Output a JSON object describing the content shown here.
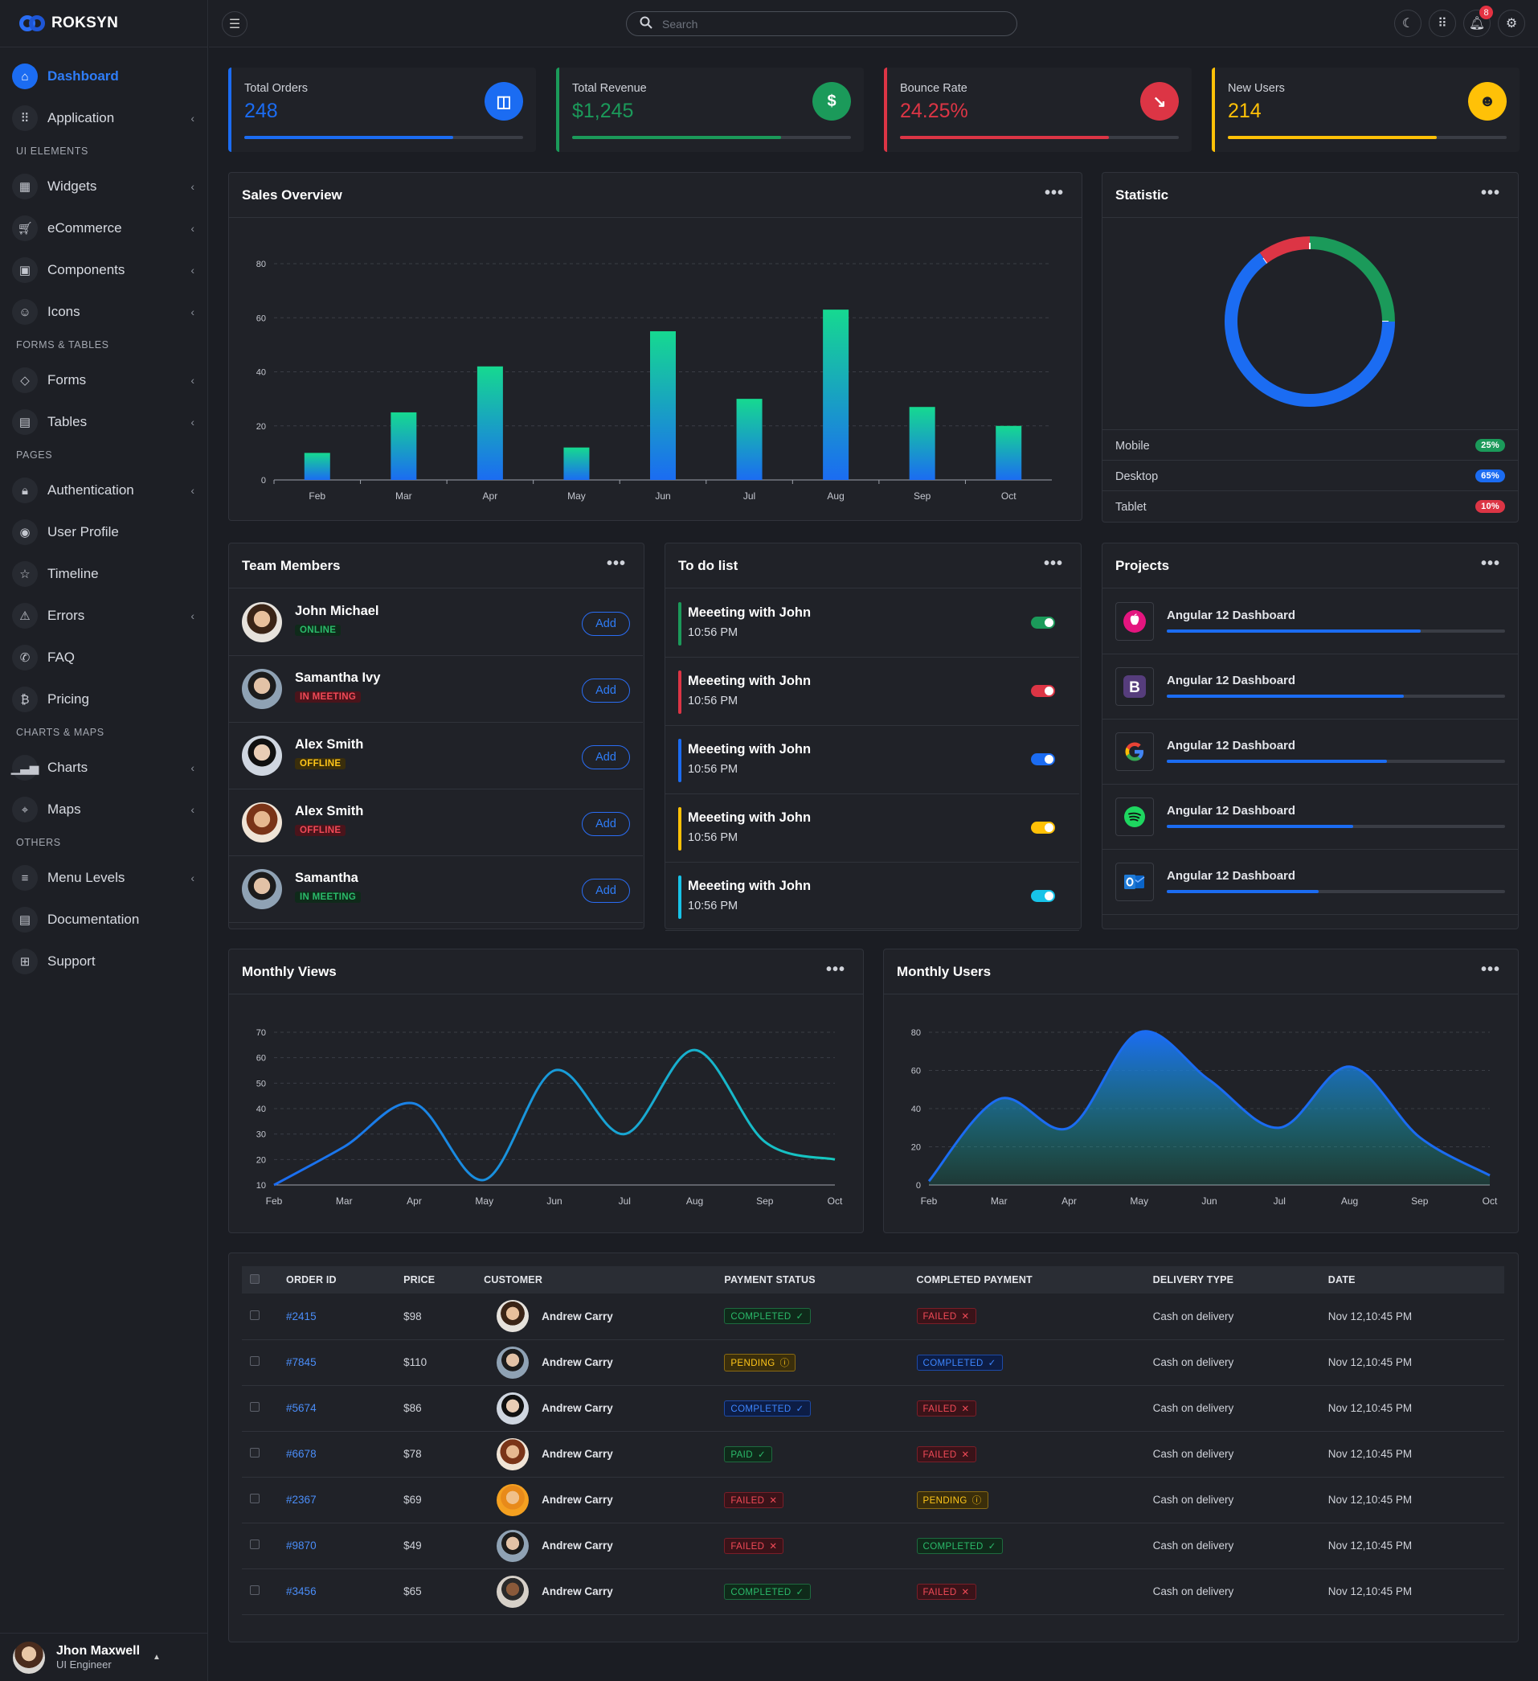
{
  "app": {
    "title": "ROKSYN"
  },
  "sidebar": {
    "items": [
      {
        "label": "Dashboard",
        "icon": "home-icon",
        "active": true,
        "chev": false,
        "sec": ""
      },
      {
        "label": "Application",
        "icon": "grid-icon",
        "chev": true,
        "sec": ""
      },
      {
        "label": "Widgets",
        "icon": "widgets-icon",
        "chev": true,
        "sec": "UI ELEMENTS"
      },
      {
        "label": "eCommerce",
        "icon": "cart-icon",
        "chev": true,
        "sec": ""
      },
      {
        "label": "Components",
        "icon": "briefcase-icon",
        "chev": true,
        "sec": ""
      },
      {
        "label": "Icons",
        "icon": "smile-icon",
        "chev": true,
        "sec": ""
      },
      {
        "label": "Forms",
        "icon": "diamond-icon",
        "chev": true,
        "sec": "FORMS & TABLES"
      },
      {
        "label": "Tables",
        "icon": "table-icon",
        "chev": true,
        "sec": ""
      },
      {
        "label": "Authentication",
        "icon": "lock-icon",
        "chev": true,
        "sec": "PAGES"
      },
      {
        "label": "User Profile",
        "icon": "user-circle-icon",
        "chev": false,
        "sec": ""
      },
      {
        "label": "Timeline",
        "icon": "star-icon",
        "chev": false,
        "sec": ""
      },
      {
        "label": "Errors",
        "icon": "warning-icon",
        "chev": true,
        "sec": ""
      },
      {
        "label": "FAQ",
        "icon": "phone-icon",
        "chev": false,
        "sec": ""
      },
      {
        "label": "Pricing",
        "icon": "bitcoin-icon",
        "chev": false,
        "sec": ""
      },
      {
        "label": "Charts",
        "icon": "chart-icon",
        "chev": true,
        "sec": "CHARTS & MAPS"
      },
      {
        "label": "Maps",
        "icon": "map-pin-icon",
        "chev": true,
        "sec": ""
      },
      {
        "label": "Menu Levels",
        "icon": "menu-icon",
        "chev": true,
        "sec": "OTHERS"
      },
      {
        "label": "Documentation",
        "icon": "document-icon",
        "chev": false,
        "sec": ""
      },
      {
        "label": "Support",
        "icon": "support-icon",
        "chev": false,
        "sec": ""
      }
    ],
    "user": {
      "name": "Jhon Maxwell",
      "role": "UI Engineer"
    }
  },
  "topbar": {
    "search_placeholder": "Search",
    "notifications": "8"
  },
  "stats": [
    {
      "title": "Total Orders",
      "value": "248",
      "color": "#1b6cf2",
      "progress": 0.75,
      "icon": "basket-icon",
      "glyph": "◫"
    },
    {
      "title": "Total Revenue",
      "value": "$1,245",
      "color": "#1b9a5a",
      "progress": 0.75,
      "icon": "dollar-icon",
      "glyph": "$"
    },
    {
      "title": "Bounce Rate",
      "value": "24.25%",
      "color": "#dc3545",
      "progress": 0.75,
      "icon": "chart-down-icon",
      "glyph": "↘"
    },
    {
      "title": "New Users",
      "value": "214",
      "color": "#ffc107",
      "progress": 0.75,
      "icon": "users-icon",
      "glyph": "☻"
    }
  ],
  "sales": {
    "title": "Sales Overview"
  },
  "statistic": {
    "title": "Statistic",
    "rows": [
      {
        "label": "Mobile",
        "value": "25%",
        "color": "#1b9a5a"
      },
      {
        "label": "Desktop",
        "value": "65%",
        "color": "#1b6cf2"
      },
      {
        "label": "Tablet",
        "value": "10%",
        "color": "#dc3545"
      }
    ]
  },
  "team": {
    "title": "Team Members",
    "add_label": "Add",
    "members": [
      {
        "name": "John Michael",
        "status": "ONLINE",
        "status_color": "#2bbb6b",
        "status_bg": "#0f2a1a"
      },
      {
        "name": "Samantha Ivy",
        "status": "IN MEETING",
        "status_color": "#f14a57",
        "status_bg": "#4a141b"
      },
      {
        "name": "Alex Smith",
        "status": "OFFLINE",
        "status_color": "#ffc61a",
        "status_bg": "#3a2e0b"
      },
      {
        "name": "Alex Smith",
        "status": "OFFLINE",
        "status_color": "#f14a57",
        "status_bg": "#4a141b"
      },
      {
        "name": "Samantha",
        "status": "IN MEETING",
        "status_color": "#2bbb6b",
        "status_bg": "#0f2a1a"
      }
    ]
  },
  "todo": {
    "title": "To do list",
    "items": [
      {
        "title": "Meeeting with John",
        "time": "10:56 PM",
        "color": "#1b9a5a"
      },
      {
        "title": "Meeeting with John",
        "time": "10:56 PM",
        "color": "#dc3545"
      },
      {
        "title": "Meeeting with John",
        "time": "10:56 PM",
        "color": "#1b6cf2"
      },
      {
        "title": "Meeeting with John",
        "time": "10:56 PM",
        "color": "#ffc107"
      },
      {
        "title": "Meeeting with John",
        "time": "10:56 PM",
        "color": "#17c3e8"
      }
    ]
  },
  "projects": {
    "title": "Projects",
    "items": [
      {
        "name": "Angular 12 Dashboard",
        "progress": 0.75,
        "icon": "apple-icon"
      },
      {
        "name": "Angular 12 Dashboard",
        "progress": 0.7,
        "icon": "bootstrap-icon"
      },
      {
        "name": "Angular 12 Dashboard",
        "progress": 0.65,
        "icon": "google-icon"
      },
      {
        "name": "Angular 12 Dashboard",
        "progress": 0.55,
        "icon": "spotify-icon"
      },
      {
        "name": "Angular 12 Dashboard",
        "progress": 0.45,
        "icon": "outlook-icon"
      }
    ]
  },
  "views": {
    "title": "Monthly Views"
  },
  "users_chart": {
    "title": "Monthly Users"
  },
  "orders": {
    "headers": [
      "ORDER ID",
      "PRICE",
      "CUSTOMER",
      "PAYMENT STATUS",
      "COMPLETED PAYMENT",
      "DELIVERY TYPE",
      "DATE"
    ],
    "rows": [
      {
        "id": "#2415",
        "price": "$98",
        "customer": "Andrew Carry",
        "pay": "COMPLETED",
        "pay_cls": "p-completed",
        "pay_glyph": "✓",
        "comp": "FAILED",
        "comp_cls": "p-failed",
        "comp_glyph": "✕",
        "delivery": "Cash on delivery",
        "date": "Nov 12,10:45 PM"
      },
      {
        "id": "#7845",
        "price": "$110",
        "customer": "Andrew Carry",
        "pay": "PENDING",
        "pay_cls": "p-pending",
        "pay_glyph": "ⓘ",
        "comp": "COMPLETED",
        "comp_cls": "p-blue",
        "comp_glyph": "✓",
        "delivery": "Cash on delivery",
        "date": "Nov 12,10:45 PM"
      },
      {
        "id": "#5674",
        "price": "$86",
        "customer": "Andrew Carry",
        "pay": "COMPLETED",
        "pay_cls": "p-blue",
        "pay_glyph": "✓",
        "comp": "FAILED",
        "comp_cls": "p-failed",
        "comp_glyph": "✕",
        "delivery": "Cash on delivery",
        "date": "Nov 12,10:45 PM"
      },
      {
        "id": "#6678",
        "price": "$78",
        "customer": "Andrew Carry",
        "pay": "PAID",
        "pay_cls": "p-paid",
        "pay_glyph": "✓",
        "comp": "FAILED",
        "comp_cls": "p-failed",
        "comp_glyph": "✕",
        "delivery": "Cash on delivery",
        "date": "Nov 12,10:45 PM"
      },
      {
        "id": "#2367",
        "price": "$69",
        "customer": "Andrew Carry",
        "pay": "FAILED",
        "pay_cls": "p-failed",
        "pay_glyph": "✕",
        "comp": "PENDING",
        "comp_cls": "p-pending",
        "comp_glyph": "ⓘ",
        "delivery": "Cash on delivery",
        "date": "Nov 12,10:45 PM"
      },
      {
        "id": "#9870",
        "price": "$49",
        "customer": "Andrew Carry",
        "pay": "FAILED",
        "pay_cls": "p-failed",
        "pay_glyph": "✕",
        "comp": "COMPLETED",
        "comp_cls": "p-completed",
        "comp_glyph": "✓",
        "delivery": "Cash on delivery",
        "date": "Nov 12,10:45 PM"
      },
      {
        "id": "#3456",
        "price": "$65",
        "customer": "Andrew Carry",
        "pay": "COMPLETED",
        "pay_cls": "p-completed",
        "pay_glyph": "✓",
        "comp": "FAILED",
        "comp_cls": "p-failed",
        "comp_glyph": "✕",
        "delivery": "Cash on delivery",
        "date": "Nov 12,10:45 PM"
      }
    ]
  },
  "chart_data": [
    {
      "type": "bar",
      "title": "Sales Overview",
      "categories": [
        "Feb",
        "Mar",
        "Apr",
        "May",
        "Jun",
        "Jul",
        "Aug",
        "Sep",
        "Oct"
      ],
      "values": [
        10,
        25,
        42,
        12,
        55,
        30,
        63,
        27,
        20
      ],
      "ylim": [
        0,
        80
      ],
      "yticks": [
        0,
        20,
        40,
        60,
        80
      ],
      "grid": true
    },
    {
      "type": "pie",
      "title": "Statistic",
      "labels": [
        "Mobile",
        "Desktop",
        "Tablet"
      ],
      "values": [
        25,
        65,
        10
      ],
      "colors": [
        "#1b9a5a",
        "#1b6cf2",
        "#dc3545"
      ],
      "donut": true
    },
    {
      "type": "line",
      "title": "Monthly Views",
      "categories": [
        "Feb",
        "Mar",
        "Apr",
        "May",
        "Jun",
        "Jul",
        "Aug",
        "Sep",
        "Oct"
      ],
      "values": [
        10,
        25,
        42,
        12,
        55,
        30,
        63,
        27,
        20
      ],
      "ylim": [
        10,
        70
      ],
      "yticks": [
        10,
        20,
        30,
        40,
        50,
        60,
        70
      ],
      "grid": true
    },
    {
      "type": "area",
      "title": "Monthly Users",
      "categories": [
        "Feb",
        "Mar",
        "Apr",
        "May",
        "Jun",
        "Jul",
        "Aug",
        "Sep",
        "Oct"
      ],
      "values": [
        2,
        45,
        30,
        80,
        55,
        30,
        62,
        25,
        5
      ],
      "ylim": [
        0,
        80
      ],
      "yticks": [
        0,
        20,
        40,
        60,
        80
      ],
      "grid": true
    }
  ]
}
